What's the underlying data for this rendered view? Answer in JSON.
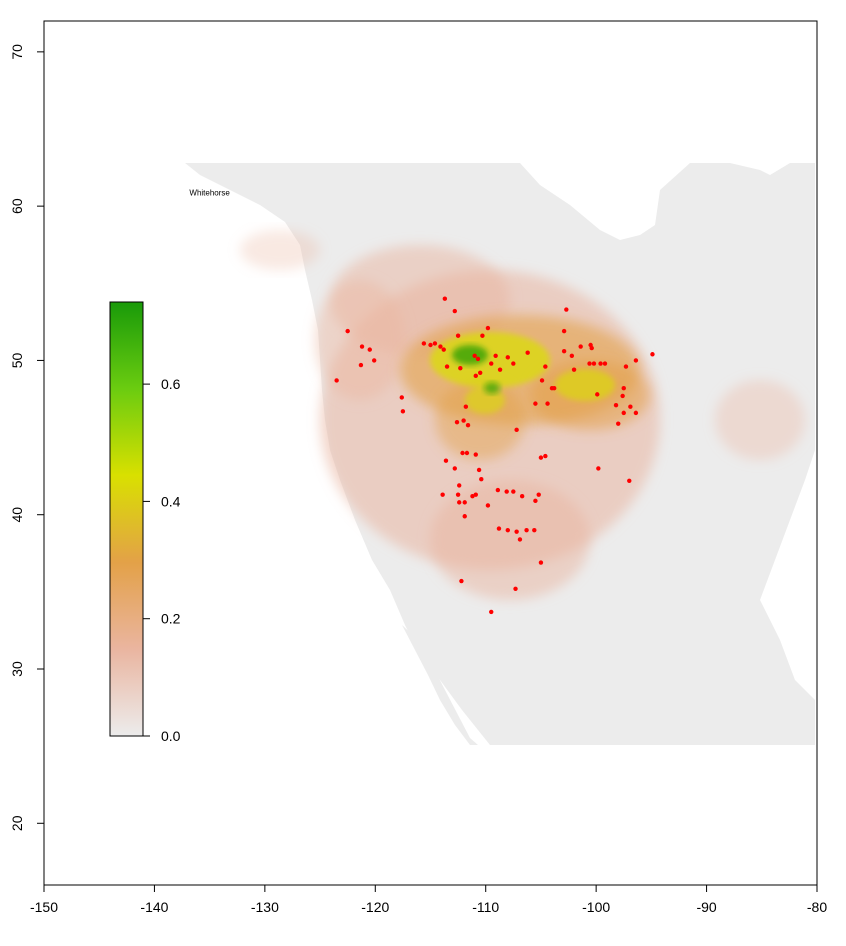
{
  "map": {
    "x_range": [
      -150,
      -80
    ],
    "y_range": [
      16,
      72
    ],
    "x_ticks": [
      "-150",
      "-140",
      "-130",
      "-120",
      "-110",
      "-100",
      "-90",
      "-80"
    ],
    "y_ticks": [
      "20",
      "30",
      "40",
      "50",
      "60",
      "70"
    ],
    "place_label": {
      "text": "Whitehorse",
      "lon": -135,
      "lat": 60.7
    },
    "colors": {
      "land": "#ececec",
      "low": "#eab5a0",
      "mid": "#e3a148",
      "high": "#d9e000",
      "top": "#199a09",
      "points": "#ff0000"
    },
    "legend": {
      "ticks": [
        "0.0",
        "0.2",
        "0.4",
        "0.6"
      ],
      "tick_values": [
        0.0,
        0.2,
        0.4,
        0.6
      ],
      "max": 0.74,
      "colorbar": [
        "#ececec",
        "#eab5a0",
        "#e3a148",
        "#d9e000",
        "#6bcc10",
        "#199a09"
      ]
    },
    "points": [
      [
        -123.5,
        48.7
      ],
      [
        -122.5,
        51.9
      ],
      [
        -121.2,
        50.9
      ],
      [
        -121.3,
        49.7
      ],
      [
        -120.5,
        50.7
      ],
      [
        -120.1,
        50.0
      ],
      [
        -117.6,
        47.6
      ],
      [
        -117.5,
        46.7
      ],
      [
        -115.6,
        51.1
      ],
      [
        -115.0,
        51.0
      ],
      [
        -114.6,
        51.1
      ],
      [
        -114.1,
        50.9
      ],
      [
        -113.8,
        50.7
      ],
      [
        -113.7,
        54.0
      ],
      [
        -113.5,
        49.6
      ],
      [
        -112.8,
        53.2
      ],
      [
        -112.5,
        51.6
      ],
      [
        -112.3,
        49.5
      ],
      [
        -112.6,
        46.0
      ],
      [
        -112.0,
        46.1
      ],
      [
        -111.8,
        47.0
      ],
      [
        -111.6,
        45.8
      ],
      [
        -110.9,
        49.0
      ],
      [
        -111.0,
        50.3
      ],
      [
        -110.7,
        50.1
      ],
      [
        -110.5,
        49.2
      ],
      [
        -110.3,
        51.6
      ],
      [
        -109.8,
        52.1
      ],
      [
        -109.5,
        49.8
      ],
      [
        -109.1,
        50.3
      ],
      [
        -108.7,
        49.4
      ],
      [
        -108.0,
        50.2
      ],
      [
        -107.5,
        49.8
      ],
      [
        -107.2,
        45.5
      ],
      [
        -106.2,
        50.5
      ],
      [
        -105.5,
        47.2
      ],
      [
        -104.9,
        48.7
      ],
      [
        -104.6,
        49.6
      ],
      [
        -104.0,
        48.2
      ],
      [
        -103.8,
        48.2
      ],
      [
        -102.7,
        53.3
      ],
      [
        -102.9,
        51.9
      ],
      [
        -102.9,
        50.6
      ],
      [
        -102.0,
        49.4
      ],
      [
        -102.2,
        50.3
      ],
      [
        -101.4,
        50.9
      ],
      [
        -100.5,
        51.0
      ],
      [
        -100.4,
        50.8
      ],
      [
        -100.2,
        49.8
      ],
      [
        -100.6,
        49.8
      ],
      [
        -99.9,
        47.8
      ],
      [
        -99.6,
        49.8
      ],
      [
        -99.2,
        49.8
      ],
      [
        -98.2,
        47.1
      ],
      [
        -97.6,
        47.7
      ],
      [
        -97.5,
        46.6
      ],
      [
        -97.5,
        48.2
      ],
      [
        -97.3,
        49.6
      ],
      [
        -96.9,
        47.0
      ],
      [
        -96.4,
        46.6
      ],
      [
        -96.4,
        50.0
      ],
      [
        -94.9,
        50.4
      ],
      [
        -98.0,
        45.9
      ],
      [
        -99.8,
        43.0
      ],
      [
        -97.0,
        42.2
      ],
      [
        -104.4,
        47.2
      ],
      [
        -113.6,
        43.5
      ],
      [
        -112.8,
        43.0
      ],
      [
        -112.4,
        41.9
      ],
      [
        -112.4,
        40.8
      ],
      [
        -112.5,
        41.3
      ],
      [
        -111.9,
        40.8
      ],
      [
        -111.7,
        44.0
      ],
      [
        -112.1,
        44.0
      ],
      [
        -110.9,
        41.3
      ],
      [
        -111.2,
        41.2
      ],
      [
        -110.9,
        43.9
      ],
      [
        -111.9,
        39.9
      ],
      [
        -110.4,
        42.3
      ],
      [
        -110.6,
        42.9
      ],
      [
        -109.8,
        40.6
      ],
      [
        -108.9,
        41.6
      ],
      [
        -108.1,
        41.5
      ],
      [
        -107.5,
        41.5
      ],
      [
        -106.7,
        41.2
      ],
      [
        -105.5,
        40.9
      ],
      [
        -105.2,
        41.3
      ],
      [
        -105.0,
        43.7
      ],
      [
        -104.6,
        43.8
      ],
      [
        -113.9,
        41.3
      ],
      [
        -108.8,
        39.1
      ],
      [
        -108.0,
        39.0
      ],
      [
        -107.2,
        38.9
      ],
      [
        -106.9,
        38.4
      ],
      [
        -106.3,
        39.0
      ],
      [
        -105.6,
        39.0
      ],
      [
        -105.0,
        36.9
      ],
      [
        -107.3,
        35.2
      ],
      [
        -112.2,
        35.7
      ],
      [
        -109.5,
        33.7
      ]
    ]
  }
}
